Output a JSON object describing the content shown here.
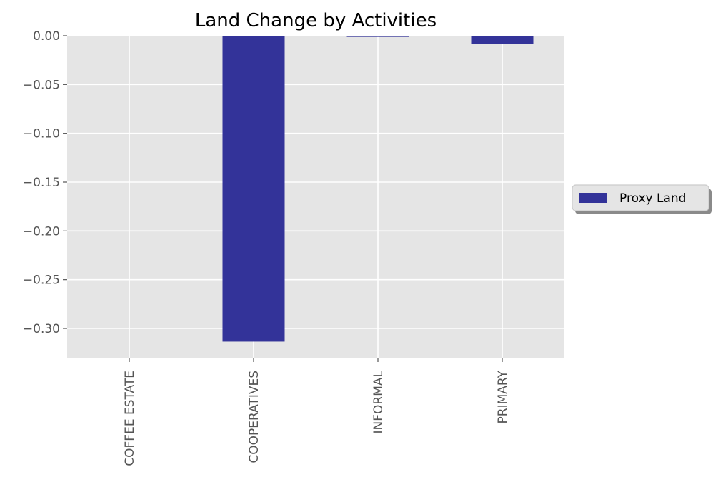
{
  "chart_data": {
    "type": "bar",
    "title": "Land Change by Activities",
    "xlabel": "",
    "ylabel": "",
    "categories": [
      "COFFEE ESTATE",
      "COOPERATIVES",
      "INFORMAL",
      "PRIMARY"
    ],
    "series": [
      {
        "name": "Proxy Land",
        "values": [
          -0.0005,
          -0.3135,
          -0.0012,
          -0.0085
        ],
        "color": "#333399"
      }
    ],
    "ylim": [
      -0.33,
      0.0
    ],
    "yticks": [
      0.0,
      -0.05,
      -0.1,
      -0.15,
      -0.2,
      -0.25,
      -0.3
    ],
    "ytick_labels": [
      "0.00",
      "−0.05",
      "−0.10",
      "−0.15",
      "−0.20",
      "−0.25",
      "−0.30"
    ],
    "grid": true,
    "legend_position": "center-right, outside plot",
    "style": "ggplot",
    "background_color": "#e5e5e5",
    "grid_color": "#ffffff"
  }
}
